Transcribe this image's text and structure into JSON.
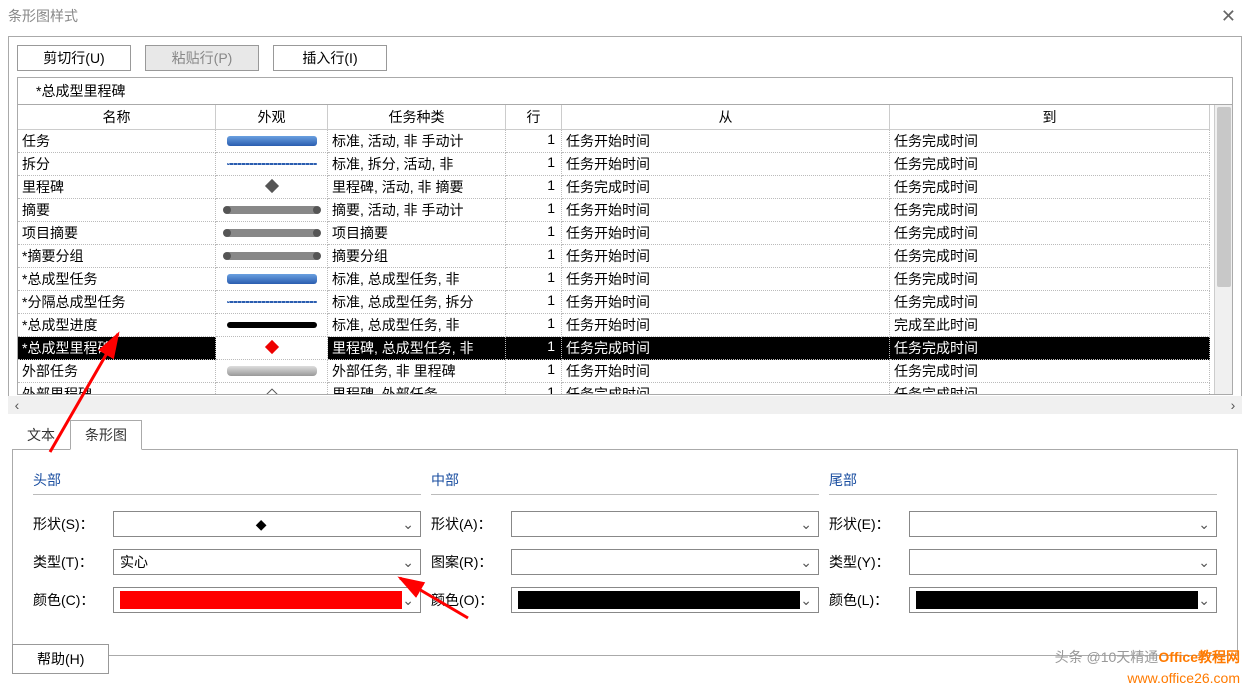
{
  "window": {
    "title": "条形图样式"
  },
  "toolbar": {
    "cut": "剪切行(U)",
    "paste": "粘贴行(P)",
    "insert": "插入行(I)"
  },
  "indicator": "*总成型里程碑",
  "columns": {
    "name": "名称",
    "appearance": "外观",
    "taskType": "任务种类",
    "row": "行",
    "from": "从",
    "to": "到"
  },
  "rows": [
    {
      "name": "任务",
      "shape": "bar-blue",
      "type": "标准, 活动, 非 手动计",
      "row": "1",
      "from": "任务开始时间",
      "to": "任务完成时间"
    },
    {
      "name": "拆分",
      "shape": "bar-dots",
      "type": "标准, 拆分, 活动, 非",
      "row": "1",
      "from": "任务开始时间",
      "to": "任务完成时间"
    },
    {
      "name": "里程碑",
      "shape": "bar-diamond",
      "type": "里程碑, 活动, 非 摘要",
      "row": "1",
      "from": "任务完成时间",
      "to": "任务完成时间"
    },
    {
      "name": "摘要",
      "shape": "bar-summary",
      "type": "摘要, 活动, 非 手动计",
      "row": "1",
      "from": "任务开始时间",
      "to": "任务完成时间"
    },
    {
      "name": "项目摘要",
      "shape": "bar-summary",
      "type": "项目摘要",
      "row": "1",
      "from": "任务开始时间",
      "to": "任务完成时间"
    },
    {
      "name": "*摘要分组",
      "shape": "bar-summary",
      "type": "摘要分组",
      "row": "1",
      "from": "任务开始时间",
      "to": "任务完成时间"
    },
    {
      "name": "*总成型任务",
      "shape": "bar-blue",
      "type": "标准, 总成型任务, 非",
      "row": "1",
      "from": "任务开始时间",
      "to": "任务完成时间"
    },
    {
      "name": "*分隔总成型任务",
      "shape": "bar-dots-thin",
      "type": "标准, 总成型任务, 拆分",
      "row": "1",
      "from": "任务开始时间",
      "to": "任务完成时间"
    },
    {
      "name": "*总成型进度",
      "shape": "bar-black",
      "type": "标准, 总成型任务, 非",
      "row": "1",
      "from": "任务开始时间",
      "to": "完成至此时间"
    },
    {
      "name": "*总成型里程碑",
      "shape": "bar-diamond-red",
      "type": "里程碑, 总成型任务, 非",
      "row": "1",
      "from": "任务完成时间",
      "to": "任务完成时间",
      "selected": true
    },
    {
      "name": "外部任务",
      "shape": "bar-gray",
      "type": "外部任务, 非 里程碑",
      "row": "1",
      "from": "任务开始时间",
      "to": "任务完成时间"
    },
    {
      "name": "外部里程碑",
      "shape": "bar-diamond-open",
      "type": "里程碑, 外部任务",
      "row": "1",
      "from": "任务完成时间",
      "to": "任务完成时间"
    }
  ],
  "tabs": {
    "text": "文本",
    "bar": "条形图"
  },
  "groups": {
    "head": {
      "title": "头部",
      "shape_label": "形状(S)：",
      "shape_val": "◆",
      "type_label": "类型(T)：",
      "type_val": "实心",
      "color_label": "颜色(C)：",
      "color_val": "#ff0000"
    },
    "middle": {
      "title": "中部",
      "shape_label": "形状(A)：",
      "shape_val": "",
      "pattern_label": "图案(R)：",
      "pattern_val": "",
      "color_label": "颜色(O)：",
      "color_val": "#000000"
    },
    "tail": {
      "title": "尾部",
      "shape_label": "形状(E)：",
      "shape_val": "",
      "type_label": "类型(Y)：",
      "type_val": "",
      "color_label": "颜色(L)：",
      "color_val": "#000000"
    }
  },
  "help": "帮助(H)",
  "watermark": {
    "line1_a": "头条 @10天精通",
    "line1_b": "Office教程网",
    "line2": "www.office26.com"
  }
}
